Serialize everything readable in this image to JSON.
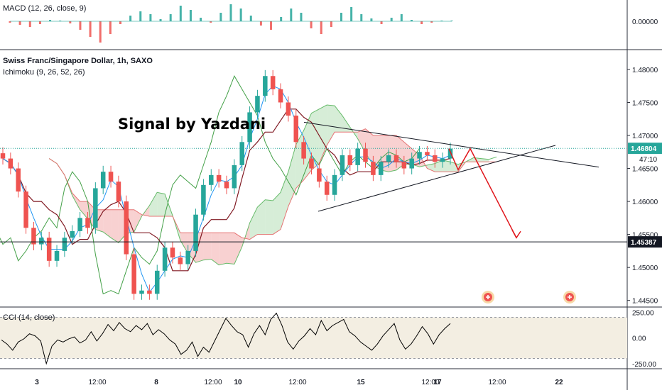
{
  "chart_data": [
    {
      "type": "bar",
      "panel": "macd",
      "title": "MACD (12, 26, close, 9)",
      "ylim": [
        -0.0004,
        0.0003
      ],
      "yticks": [
        {
          "value": 0,
          "label": "0.00000"
        }
      ],
      "series": [
        {
          "name": "histogram",
          "values": [
            -2e-05,
            -5e-05,
            -8e-05,
            -4e-05,
            2e-05,
            1e-05,
            -3e-05,
            -0.00012,
            -0.00022,
            -0.0003,
            -0.00018,
            -4e-05,
            8e-05,
            0.00014,
            0.0001,
            3e-05,
            0.0001,
            0.00022,
            0.00016,
            5e-05,
            -2e-05,
            0.00012,
            0.00024,
            0.00018,
            8e-05,
            -6e-05,
            -0.00012,
            6e-05,
            0.00018,
            0.00012,
            -0.0001,
            -0.00018,
            -8e-05,
            0.00012,
            0.0002,
            0.0001,
            4e-05,
            -4e-05,
            5e-05,
            0.0001,
            2e-05,
            -4e-05,
            -2e-05,
            1e-05,
            1e-05
          ]
        }
      ]
    },
    {
      "type": "candlestick",
      "panel": "price",
      "title": "Swiss Franc/Singapore Dollar, 1h, SAXO",
      "subtitle": "Ichimoku (9, 26, 52, 26)",
      "annotation": "Signal by Yazdani",
      "ylim": [
        1.444,
        1.483
      ],
      "yticks": [
        {
          "value": 1.48,
          "label": "1.48000"
        },
        {
          "value": 1.475,
          "label": "1.47500"
        },
        {
          "value": 1.47,
          "label": "1.47000"
        },
        {
          "value": 1.465,
          "label": "1.46500"
        },
        {
          "value": 1.46,
          "label": "1.46000"
        },
        {
          "value": 1.455,
          "label": "1.45500"
        },
        {
          "value": 1.45,
          "label": "1.45000"
        },
        {
          "value": 1.445,
          "label": "1.44500"
        }
      ],
      "price_tags": [
        {
          "value": 1.46804,
          "label": "1.46804",
          "countdown": "47:10",
          "color": "#26a69a"
        },
        {
          "value": 1.45387,
          "label": "1.45387",
          "color": "#131722"
        }
      ],
      "closes": [
        1.4665,
        1.465,
        1.4615,
        1.456,
        1.4535,
        1.4545,
        1.451,
        1.4525,
        1.4545,
        1.4555,
        1.4575,
        1.456,
        1.462,
        1.4645,
        1.463,
        1.46,
        1.452,
        1.446,
        1.4465,
        1.446,
        1.4495,
        1.453,
        1.4515,
        1.4505,
        1.4525,
        1.458,
        1.4625,
        1.464,
        1.463,
        1.462,
        1.4655,
        1.469,
        1.4735,
        1.476,
        1.479,
        1.477,
        1.475,
        1.473,
        1.469,
        1.4665,
        1.465,
        1.463,
        1.461,
        1.464,
        1.467,
        1.4655,
        1.468,
        1.466,
        1.464,
        1.466,
        1.467,
        1.466,
        1.465,
        1.4665,
        1.4675,
        1.467,
        1.466,
        1.4665,
        1.468
      ],
      "trendlines": [
        {
          "name": "upper",
          "from": [
            1.472
          ],
          "to": [
            1.4652
          ]
        },
        {
          "name": "lower",
          "from": [
            1.4585
          ],
          "to": [
            1.4685
          ]
        }
      ],
      "forecast": [
        1.468,
        1.4648,
        1.468,
        1.4545
      ]
    },
    {
      "type": "line",
      "panel": "cci",
      "title": "CCI (14, close)",
      "ylim": [
        -300,
        300
      ],
      "yticks": [
        {
          "value": 250,
          "label": "250.00"
        },
        {
          "value": 0,
          "label": "0.00"
        },
        {
          "value": -250,
          "label": "-250.00"
        }
      ],
      "band": [
        -200,
        200
      ],
      "values": [
        -20,
        -60,
        -120,
        -40,
        -10,
        40,
        20,
        -30,
        -250,
        -80,
        -20,
        -40,
        -10,
        10,
        -50,
        -20,
        60,
        -30,
        40,
        130,
        70,
        150,
        90,
        60,
        120,
        80,
        140,
        30,
        80,
        40,
        -20,
        -60,
        -160,
        -120,
        -40,
        -180,
        -90,
        -140,
        -30,
        80,
        190,
        120,
        60,
        30,
        -90,
        40,
        120,
        30,
        180,
        240,
        120,
        -40,
        -110,
        -30,
        20,
        90,
        30,
        170,
        70,
        120,
        150,
        180,
        60,
        20,
        -40,
        -80,
        -120,
        -60,
        20,
        80,
        140,
        -20,
        -110,
        -60,
        20,
        110,
        40,
        -60,
        30,
        90,
        140
      ]
    }
  ],
  "x_axis": {
    "ticks": [
      {
        "label": "3"
      },
      {
        "label": "12:00"
      },
      {
        "label": "8"
      },
      {
        "label": "12:00"
      },
      {
        "label": "10"
      },
      {
        "label": "12:00"
      },
      {
        "label": "15"
      },
      {
        "label": "12:00"
      },
      {
        "label": "17"
      },
      {
        "label": "12:00"
      },
      {
        "label": "22"
      }
    ]
  },
  "colors": {
    "up": "#26a69a",
    "down": "#ef5350",
    "tenkan": "#2196f3",
    "kijun": "#801922",
    "chikou": "#43a047",
    "cloud_bull": "#a5d6a7",
    "cloud_bear": "#ef9a9a",
    "forecast": "#e0161c",
    "cci": "#000000"
  }
}
